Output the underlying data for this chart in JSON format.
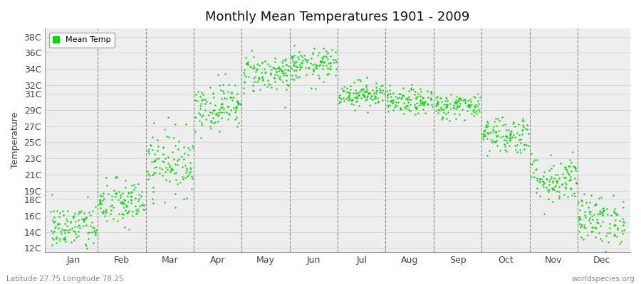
{
  "title": "Monthly Mean Temperatures 1901 - 2009",
  "ylabel": "Temperature",
  "subtitle_left": "Latitude 27.75 Longitude 78.25",
  "subtitle_right": "worldspecies.org",
  "legend_label": "Mean Temp",
  "dot_color": "#00dd00",
  "background_color": "#ffffff",
  "plot_bg_color": "#eeeeee",
  "ytick_labels": [
    "12C",
    "14C",
    "16C",
    "18C",
    "19C",
    "21C",
    "23C",
    "25C",
    "27C",
    "29C",
    "31C",
    "32C",
    "34C",
    "36C",
    "38C"
  ],
  "ytick_values": [
    12,
    14,
    16,
    18,
    19,
    21,
    23,
    25,
    27,
    29,
    31,
    32,
    34,
    36,
    38
  ],
  "months": [
    "Jan",
    "Feb",
    "Mar",
    "Apr",
    "May",
    "Jun",
    "Jul",
    "Aug",
    "Sep",
    "Oct",
    "Nov",
    "Dec"
  ],
  "ylim": [
    11.5,
    39
  ],
  "n_years": 109,
  "seed": 42,
  "monthly_mean": [
    14.5,
    17.5,
    22.5,
    29.5,
    33.5,
    34.5,
    31.0,
    30.0,
    29.5,
    26.0,
    20.5,
    15.5
  ],
  "monthly_std": [
    1.5,
    1.5,
    2.0,
    1.5,
    1.2,
    1.0,
    0.8,
    0.8,
    0.8,
    1.2,
    1.5,
    1.5
  ]
}
